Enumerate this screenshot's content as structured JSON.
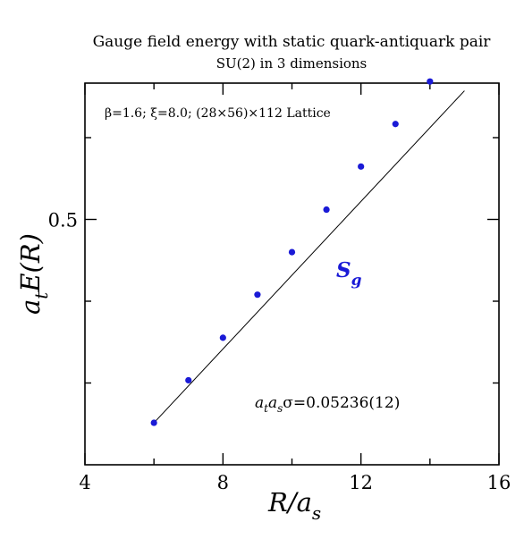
{
  "chart_data": {
    "type": "scatter",
    "title": "Gauge field energy with static quark-antiquark pair",
    "subtitle": "SU(2) in 3 dimensions",
    "info_text": "β=1.6;  ξ=8.0;  (28×56)×112 Lattice",
    "xlabel": {
      "main": "R/a",
      "sub": "s"
    },
    "ylabel": {
      "a": "a",
      "sub": "t",
      "rest": "E(R)"
    },
    "xlim": [
      4,
      16
    ],
    "ylim": [
      0.455,
      0.525
    ],
    "x_tick_labels": [
      "4",
      "8",
      "12",
      "16"
    ],
    "x_ticks": [
      4,
      8,
      12,
      16
    ],
    "x_minor_ticks": [
      6,
      10,
      14
    ],
    "y_tick_labels": [
      "0.5"
    ],
    "y_ticks": [
      0.5
    ],
    "y_minor_ticks": [
      0.47,
      0.485,
      0.515,
      0.53
    ],
    "fit_annotation": {
      "a1": "a",
      "s1": "t",
      "a2": "a",
      "s2": "s",
      "rest": "σ=0.05236(12)"
    },
    "fit_line": {
      "x": [
        6,
        15
      ],
      "y": [
        0.4627,
        0.5236
      ]
    },
    "series": [
      {
        "name": "S",
        "name_sub": "g",
        "color": "#1a1ad6",
        "x": [
          6,
          7,
          8,
          9,
          10,
          11,
          12,
          13,
          14
        ],
        "y": [
          0.4627,
          0.4705,
          0.4783,
          0.4862,
          0.494,
          0.5018,
          0.5097,
          0.5175,
          0.5253
        ]
      }
    ]
  }
}
